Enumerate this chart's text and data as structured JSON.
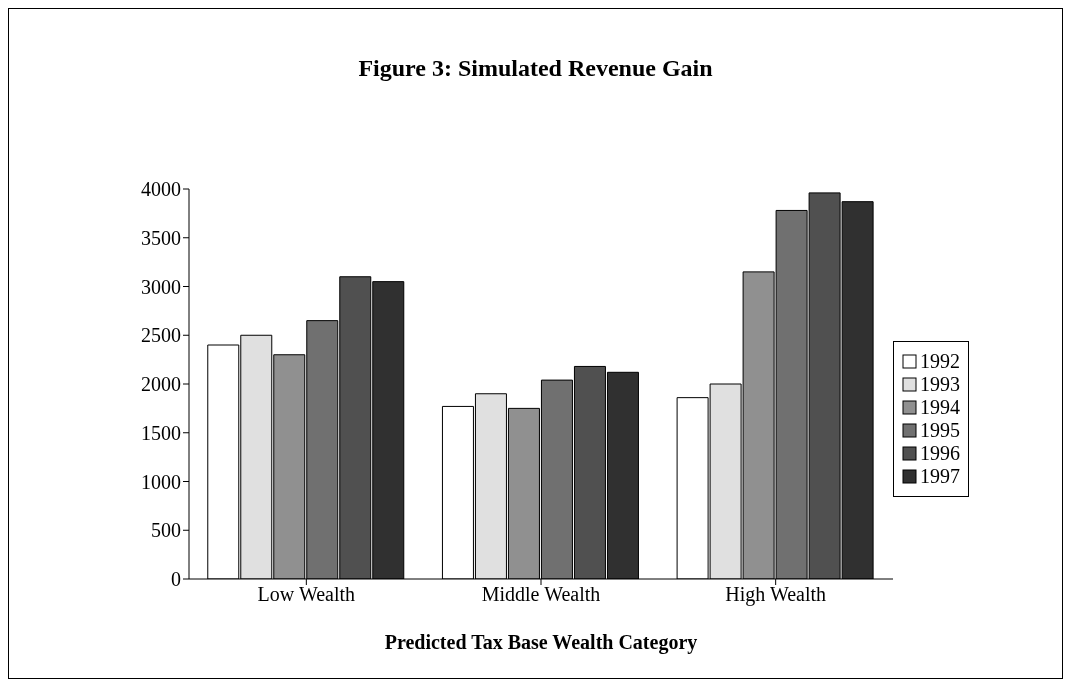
{
  "chart_data": {
    "type": "bar",
    "title": "Figure 3: Simulated Revenue Gain",
    "xlabel": "Predicted Tax Base Wealth Category",
    "categories": [
      "Low Wealth",
      "Middle Wealth",
      "High Wealth"
    ],
    "series": [
      {
        "name": "1992",
        "color": "#ffffff",
        "values": [
          2400,
          1770,
          1860
        ]
      },
      {
        "name": "1993",
        "color": "#e0e0e0",
        "values": [
          2500,
          1900,
          2000
        ]
      },
      {
        "name": "1994",
        "color": "#909090",
        "values": [
          2300,
          1750,
          3150
        ]
      },
      {
        "name": "1995",
        "color": "#707070",
        "values": [
          2650,
          2040,
          3780
        ]
      },
      {
        "name": "1996",
        "color": "#505050",
        "values": [
          3100,
          2180,
          3960
        ]
      },
      {
        "name": "1997",
        "color": "#303030",
        "values": [
          3050,
          2120,
          3870
        ]
      }
    ],
    "ylim": [
      0,
      4000
    ],
    "yticks": [
      0,
      500,
      1000,
      1500,
      2000,
      2500,
      3000,
      3500,
      4000
    ],
    "legend": "right",
    "grid": false
  }
}
